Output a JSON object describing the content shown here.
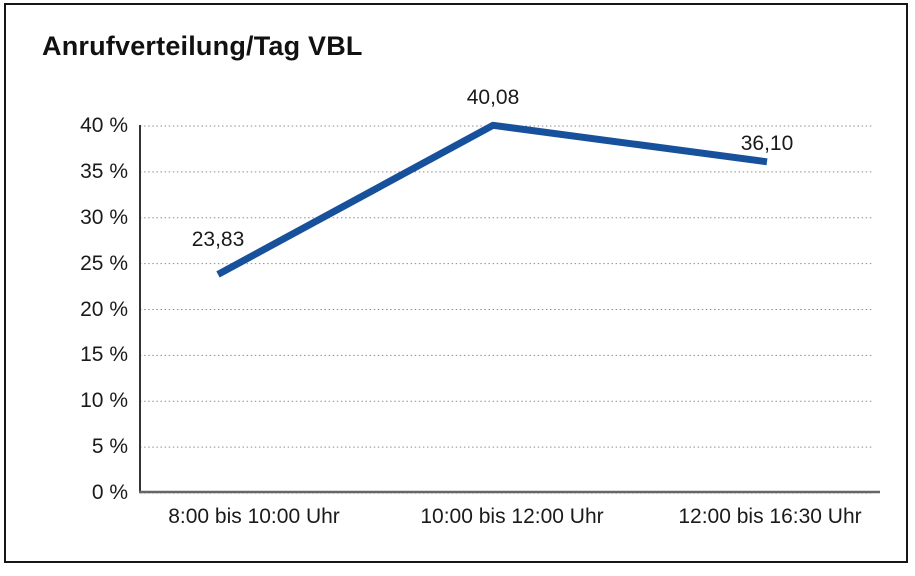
{
  "title": "Anrufverteilung/Tag VBL",
  "chart_data": {
    "type": "line",
    "title": "Anrufverteilung/Tag VBL",
    "categories": [
      "8:00 bis 10:00 Uhr",
      "10:00 bis 12:00 Uhr",
      "12:00 bis 16:30 Uhr"
    ],
    "values": [
      23.83,
      40.08,
      36.1
    ],
    "data_labels": [
      "23,83",
      "40,08",
      "36,10"
    ],
    "y_tick_values": [
      0,
      5,
      10,
      15,
      20,
      25,
      30,
      35,
      40
    ],
    "y_tick_labels": [
      "0 %",
      "5 %",
      "10 %",
      "15 %",
      "20 %",
      "25 %",
      "30 %",
      "35 %",
      "40 %"
    ],
    "ylim": [
      0,
      40
    ],
    "xlabel": "",
    "ylabel": "",
    "legend": "none",
    "grid": "horizontal-dotted",
    "colors": {
      "line": "#17519c",
      "gridline": "#8f8f8f",
      "y_axis": "#333333",
      "x_axis": "#666666",
      "text": "#1a1a1a",
      "frame_border": "#161616",
      "background": "#ffffff"
    }
  }
}
